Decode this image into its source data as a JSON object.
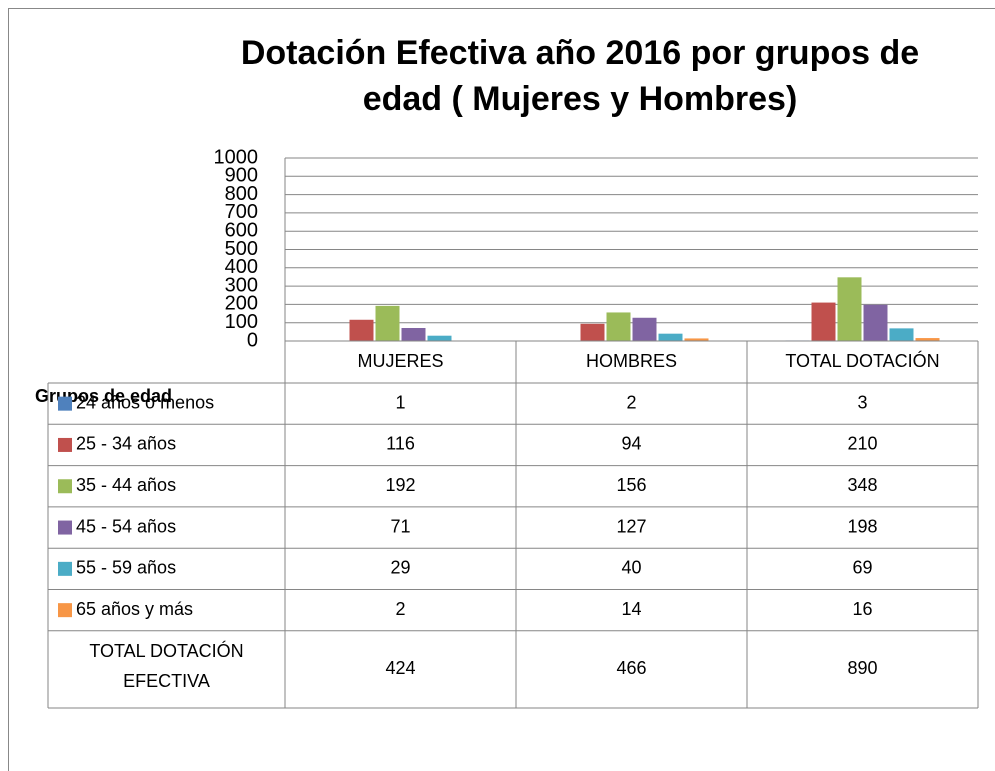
{
  "chart_data": {
    "type": "bar",
    "title": "Dotación Efectiva año 2016  por grupos de edad ( Mujeres y Hombres)",
    "x_label": "Grupos de edad",
    "categories": [
      "MUJERES",
      "HOMBRES",
      "TOTAL DOTACIÓN"
    ],
    "series": [
      {
        "name": "24 años o menos",
        "color": "#4f81bd",
        "values": [
          1,
          2,
          3
        ]
      },
      {
        "name": "25 - 34 años",
        "color": "#c0504d",
        "values": [
          116,
          94,
          210
        ]
      },
      {
        "name": "35 - 44 años",
        "color": "#9bbb59",
        "values": [
          192,
          156,
          348
        ]
      },
      {
        "name": "45 - 54 años",
        "color": "#8064a2",
        "values": [
          71,
          127,
          198
        ]
      },
      {
        "name": "55 - 59 años",
        "color": "#4bacc6",
        "values": [
          29,
          40,
          69
        ]
      },
      {
        "name": "65 años y más",
        "color": "#f79646",
        "values": [
          2,
          14,
          16
        ]
      }
    ],
    "totals": {
      "name": "TOTAL DOTACIÓN EFECTIVA",
      "values": [
        424,
        466,
        890
      ]
    },
    "ylim": [
      0,
      1000
    ],
    "yticks": [
      0,
      100,
      200,
      300,
      400,
      500,
      600,
      700,
      800,
      900,
      1000
    ],
    "grid": true
  }
}
